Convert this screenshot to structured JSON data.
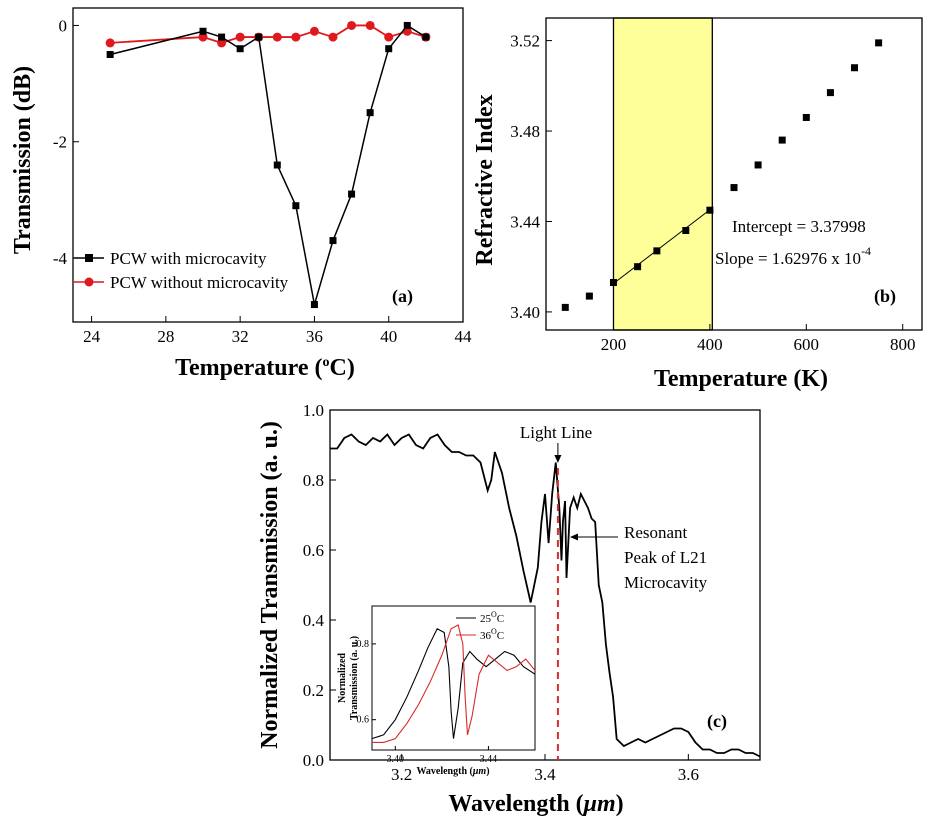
{
  "chart_data": [
    {
      "panel": "(a)",
      "type": "line",
      "xlabel": "Temperature (",
      "xlabel_sup": "o",
      "xlabel_end": "C)",
      "ylabel": "Transmission (dB)",
      "xlim": [
        23,
        44
      ],
      "ylim": [
        -5.1,
        0.3
      ],
      "xticks": [
        24,
        28,
        32,
        36,
        40,
        44
      ],
      "yticks": [
        0,
        -2,
        -4
      ],
      "legend_position": "bottom-left",
      "series": [
        {
          "name": "PCW with microcavity",
          "color": "#000000",
          "marker": "square",
          "x": [
            25,
            30,
            31,
            32,
            33,
            34,
            35,
            36,
            37,
            38,
            39,
            40,
            41,
            42
          ],
          "y": [
            -0.5,
            -0.1,
            -0.2,
            -0.4,
            -0.2,
            -2.4,
            -3.1,
            -4.8,
            -3.7,
            -2.9,
            -1.5,
            -0.4,
            0.0,
            -0.2
          ]
        },
        {
          "name": "PCW without microcavity",
          "color": "#e0191e",
          "marker": "circle",
          "x": [
            25,
            30,
            31,
            32,
            33,
            34,
            35,
            36,
            37,
            38,
            39,
            40,
            41,
            42
          ],
          "y": [
            -0.3,
            -0.2,
            -0.3,
            -0.2,
            -0.2,
            -0.2,
            -0.2,
            -0.1,
            -0.2,
            0.0,
            0.0,
            -0.2,
            -0.1,
            -0.2
          ]
        }
      ]
    },
    {
      "panel": "(b)",
      "type": "scatter",
      "xlabel": "Temperature (K)",
      "ylabel": "Refractive Index",
      "xlim": [
        60,
        840
      ],
      "ylim": [
        3.392,
        3.53
      ],
      "xticks": [
        200,
        400,
        600,
        800
      ],
      "yticks": [
        3.4,
        3.44,
        3.48,
        3.52
      ],
      "ytick_labels": [
        "3.40",
        "3.44",
        "3.48",
        "3.52"
      ],
      "highlight_range_x": [
        200,
        405
      ],
      "highlight_color": "#ffff99",
      "series": [
        {
          "marker": "square",
          "color": "#000000",
          "x": [
            100,
            150,
            200,
            250,
            290,
            350,
            400,
            450,
            500,
            550,
            600,
            650,
            700,
            750
          ],
          "y": [
            3.402,
            3.407,
            3.413,
            3.42,
            3.427,
            3.436,
            3.445,
            3.455,
            3.465,
            3.476,
            3.486,
            3.497,
            3.508,
            3.519
          ]
        }
      ],
      "fit_line": {
        "x": [
          200,
          400
        ],
        "intercept": 3.37998,
        "slope": 0.000162976
      },
      "annotations": [
        "Intercept = 3.37998",
        "Slope = 1.62976 x 10",
        "-4"
      ]
    },
    {
      "panel": "(c)",
      "type": "line",
      "xlabel": "Wavelength (",
      "xlabel_mu": "μm",
      "xlabel_end": ")",
      "ylabel": "Normalized Transmission (a. u.)",
      "xlim": [
        3.1,
        3.7
      ],
      "ylim": [
        0.0,
        1.0
      ],
      "xticks": [
        3.2,
        3.4,
        3.6
      ],
      "yticks": [
        0.0,
        0.2,
        0.4,
        0.6,
        0.8,
        1.0
      ],
      "xtick_labels": [
        "3.2",
        "3.4",
        "3.6"
      ],
      "ytick_labels": [
        "0.0",
        "0.2",
        "0.4",
        "0.6",
        "0.8",
        "1.0"
      ],
      "light_line_x": 3.418,
      "light_line_label": "Light Line",
      "resonance_annotation": [
        "Resonant",
        "Peak of L21",
        "Microcavity"
      ],
      "series": [
        {
          "color": "#000000",
          "x": [
            3.1,
            3.11,
            3.12,
            3.13,
            3.14,
            3.15,
            3.16,
            3.17,
            3.18,
            3.19,
            3.2,
            3.21,
            3.22,
            3.23,
            3.24,
            3.25,
            3.26,
            3.27,
            3.28,
            3.29,
            3.3,
            3.31,
            3.32,
            3.325,
            3.33,
            3.34,
            3.35,
            3.36,
            3.37,
            3.38,
            3.39,
            3.395,
            3.4,
            3.405,
            3.41,
            3.415,
            3.42,
            3.423,
            3.425,
            3.428,
            3.43,
            3.435,
            3.44,
            3.445,
            3.45,
            3.455,
            3.46,
            3.465,
            3.47,
            3.475,
            3.48,
            3.485,
            3.49,
            3.495,
            3.5,
            3.51,
            3.52,
            3.53,
            3.54,
            3.55,
            3.56,
            3.57,
            3.58,
            3.59,
            3.6,
            3.61,
            3.62,
            3.63,
            3.64,
            3.65,
            3.66,
            3.67,
            3.68,
            3.69,
            3.7
          ],
          "y": [
            0.89,
            0.89,
            0.92,
            0.93,
            0.91,
            0.9,
            0.92,
            0.91,
            0.93,
            0.9,
            0.92,
            0.93,
            0.9,
            0.89,
            0.92,
            0.93,
            0.9,
            0.88,
            0.88,
            0.87,
            0.87,
            0.85,
            0.77,
            0.8,
            0.88,
            0.82,
            0.72,
            0.64,
            0.54,
            0.45,
            0.55,
            0.68,
            0.76,
            0.62,
            0.76,
            0.85,
            0.72,
            0.57,
            0.68,
            0.74,
            0.52,
            0.72,
            0.75,
            0.72,
            0.76,
            0.74,
            0.72,
            0.69,
            0.68,
            0.5,
            0.45,
            0.33,
            0.25,
            0.18,
            0.06,
            0.04,
            0.05,
            0.06,
            0.05,
            0.06,
            0.07,
            0.08,
            0.09,
            0.09,
            0.08,
            0.05,
            0.03,
            0.03,
            0.02,
            0.02,
            0.03,
            0.03,
            0.02,
            0.02,
            0.01
          ]
        }
      ]
    },
    {
      "panel": "(c) inset",
      "type": "line",
      "xlabel": "Wavelength (",
      "xlabel_mu": "μm",
      "xlabel_end": ")",
      "ylabel_line1": "Normalized",
      "ylabel_line2": "Transmission (a. u.)",
      "xlim": [
        3.39,
        3.46
      ],
      "ylim": [
        0.52,
        0.9
      ],
      "xticks": [
        3.4,
        3.44
      ],
      "yticks": [
        0.6,
        0.8
      ],
      "xtick_labels": [
        "3.40",
        "3.44"
      ],
      "ytick_labels": [
        "0.6",
        "0.8"
      ],
      "series": [
        {
          "name": "25",
          "name_sup": "O",
          "name_end": "C",
          "color": "#000000",
          "x": [
            3.39,
            3.395,
            3.4,
            3.405,
            3.41,
            3.414,
            3.418,
            3.421,
            3.423,
            3.424,
            3.425,
            3.427,
            3.429,
            3.432,
            3.435,
            3.439,
            3.443,
            3.447,
            3.451,
            3.455,
            3.46
          ],
          "y": [
            0.55,
            0.56,
            0.6,
            0.66,
            0.73,
            0.79,
            0.84,
            0.83,
            0.74,
            0.62,
            0.55,
            0.63,
            0.75,
            0.78,
            0.76,
            0.74,
            0.76,
            0.78,
            0.77,
            0.74,
            0.72
          ]
        },
        {
          "name": "36",
          "name_sup": "O",
          "name_end": "C",
          "color": "#d62c2c",
          "x": [
            3.39,
            3.395,
            3.4,
            3.405,
            3.41,
            3.415,
            3.42,
            3.424,
            3.427,
            3.429,
            3.43,
            3.431,
            3.433,
            3.436,
            3.44,
            3.444,
            3.448,
            3.452,
            3.456,
            3.46
          ],
          "y": [
            0.54,
            0.54,
            0.55,
            0.59,
            0.64,
            0.7,
            0.77,
            0.84,
            0.85,
            0.8,
            0.66,
            0.56,
            0.61,
            0.72,
            0.77,
            0.75,
            0.73,
            0.74,
            0.76,
            0.73
          ]
        }
      ]
    }
  ]
}
